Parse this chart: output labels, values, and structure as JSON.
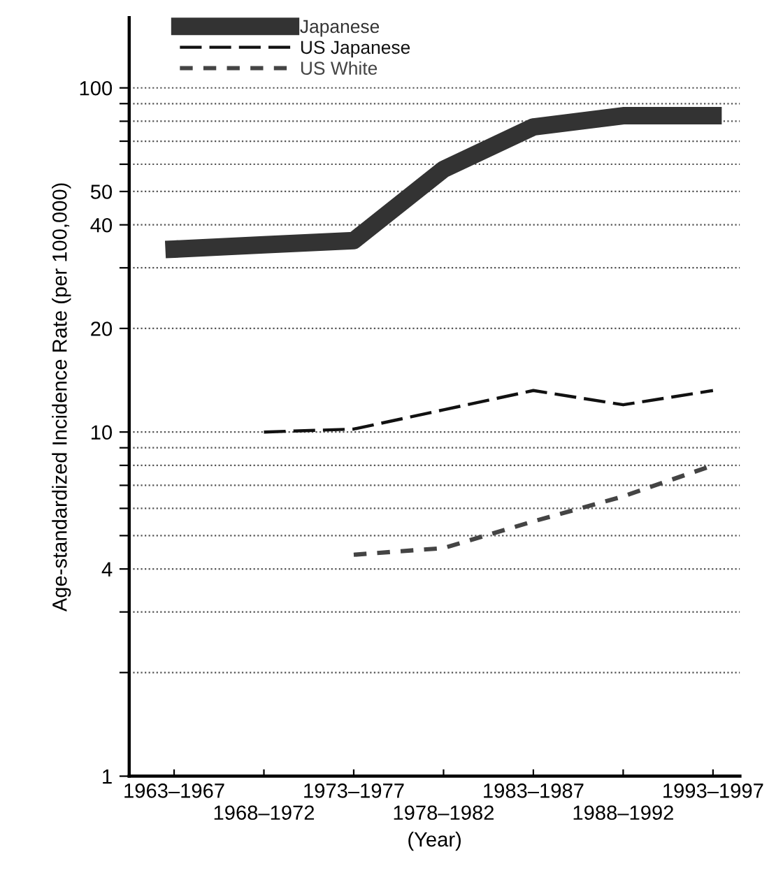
{
  "chart_data": {
    "type": "line",
    "xlabel": "(Year)",
    "ylabel": "Age-standardized Incidence Rate (per 100,000)",
    "categories": [
      "1963–1967",
      "1968–1972",
      "1973–1977",
      "1978–1982",
      "1983–1987",
      "1988–1992",
      "1993–1997"
    ],
    "series": [
      {
        "name": "Japanese",
        "color": "#333333",
        "line_style": "solid",
        "values": [
          34,
          35,
          36,
          58,
          77,
          83,
          83
        ]
      },
      {
        "name": "US Japanese",
        "color": "#111111",
        "line_style": "dashed",
        "values": [
          null,
          10,
          10.2,
          11.6,
          13.2,
          12,
          13.2
        ]
      },
      {
        "name": "US White",
        "color": "#444444",
        "line_style": "dashed",
        "values": [
          null,
          null,
          4.4,
          4.6,
          5.5,
          6.5,
          8.0
        ]
      }
    ],
    "log": "y",
    "ylim": [
      1,
      160
    ],
    "yticks": [
      1,
      {
        "value": 2,
        "label": null
      },
      {
        "value": 3,
        "label": null
      },
      4,
      {
        "value": 5,
        "label": null
      },
      {
        "value": 6,
        "label": null
      },
      {
        "value": 7,
        "label": null
      },
      {
        "value": 8,
        "label": null
      },
      {
        "value": 9,
        "label": null
      },
      10,
      20,
      {
        "value": 30,
        "label": null
      },
      40,
      50,
      {
        "value": 60,
        "label": null
      },
      {
        "value": 70,
        "label": null
      },
      {
        "value": 80,
        "label": null
      },
      {
        "value": 90,
        "label": null
      },
      100
    ],
    "grid": "y",
    "legend": "top left"
  }
}
